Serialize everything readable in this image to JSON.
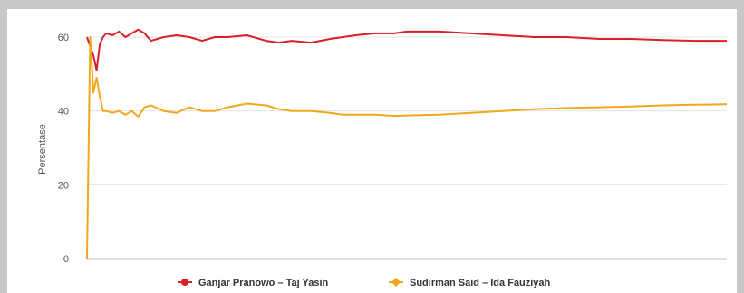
{
  "chart_data": {
    "type": "line",
    "title": "",
    "xlabel": "",
    "ylabel": "Persentase",
    "ylim": [
      0,
      60
    ],
    "yticks": [
      "0",
      "20",
      "40",
      "60"
    ],
    "grid": true,
    "legend_position": "bottom",
    "series": [
      {
        "name": "Ganjar Pranowo – Taj Yasin",
        "color": "#d9202a",
        "x": [
          0,
          1,
          1.5,
          2,
          2.5,
          3,
          4,
          5,
          6,
          7,
          8,
          9,
          10,
          12,
          14,
          16,
          18,
          20,
          22,
          25,
          28,
          30,
          32,
          35,
          38,
          40,
          42,
          45,
          48,
          50,
          55,
          60,
          65,
          70,
          75,
          80,
          85,
          90,
          95,
          100
        ],
        "values": [
          60,
          55,
          51,
          58,
          60,
          61,
          60.5,
          61.5,
          60,
          61,
          62,
          61,
          59,
          60,
          60.5,
          60,
          59,
          60,
          60,
          60.5,
          59,
          58.5,
          59,
          58.5,
          59.5,
          60,
          60.5,
          61,
          61,
          61.5,
          61.5,
          61,
          60.5,
          60,
          60,
          59.5,
          59.5,
          59.2,
          59,
          59
        ]
      },
      {
        "name": "Sudirman Said – Ida Fauziyah",
        "color": "#f0a81c",
        "x": [
          0,
          0.5,
          1,
          1.5,
          2,
          2.5,
          3,
          4,
          5,
          6,
          7,
          8,
          9,
          10,
          12,
          14,
          16,
          18,
          20,
          22,
          25,
          28,
          30,
          32,
          35,
          38,
          40,
          42,
          45,
          48,
          50,
          55,
          60,
          65,
          70,
          75,
          80,
          85,
          90,
          95,
          100
        ],
        "values": [
          0,
          60,
          45,
          49,
          44,
          40,
          40,
          39.5,
          40,
          39,
          40,
          38.5,
          41,
          41.5,
          40,
          39.5,
          41,
          40,
          40,
          41,
          42,
          41.5,
          40.5,
          40,
          40,
          39.5,
          39,
          39,
          39,
          38.7,
          38.8,
          39,
          39.5,
          40,
          40.5,
          40.8,
          41,
          41.2,
          41.5,
          41.7,
          41.8
        ]
      }
    ]
  }
}
